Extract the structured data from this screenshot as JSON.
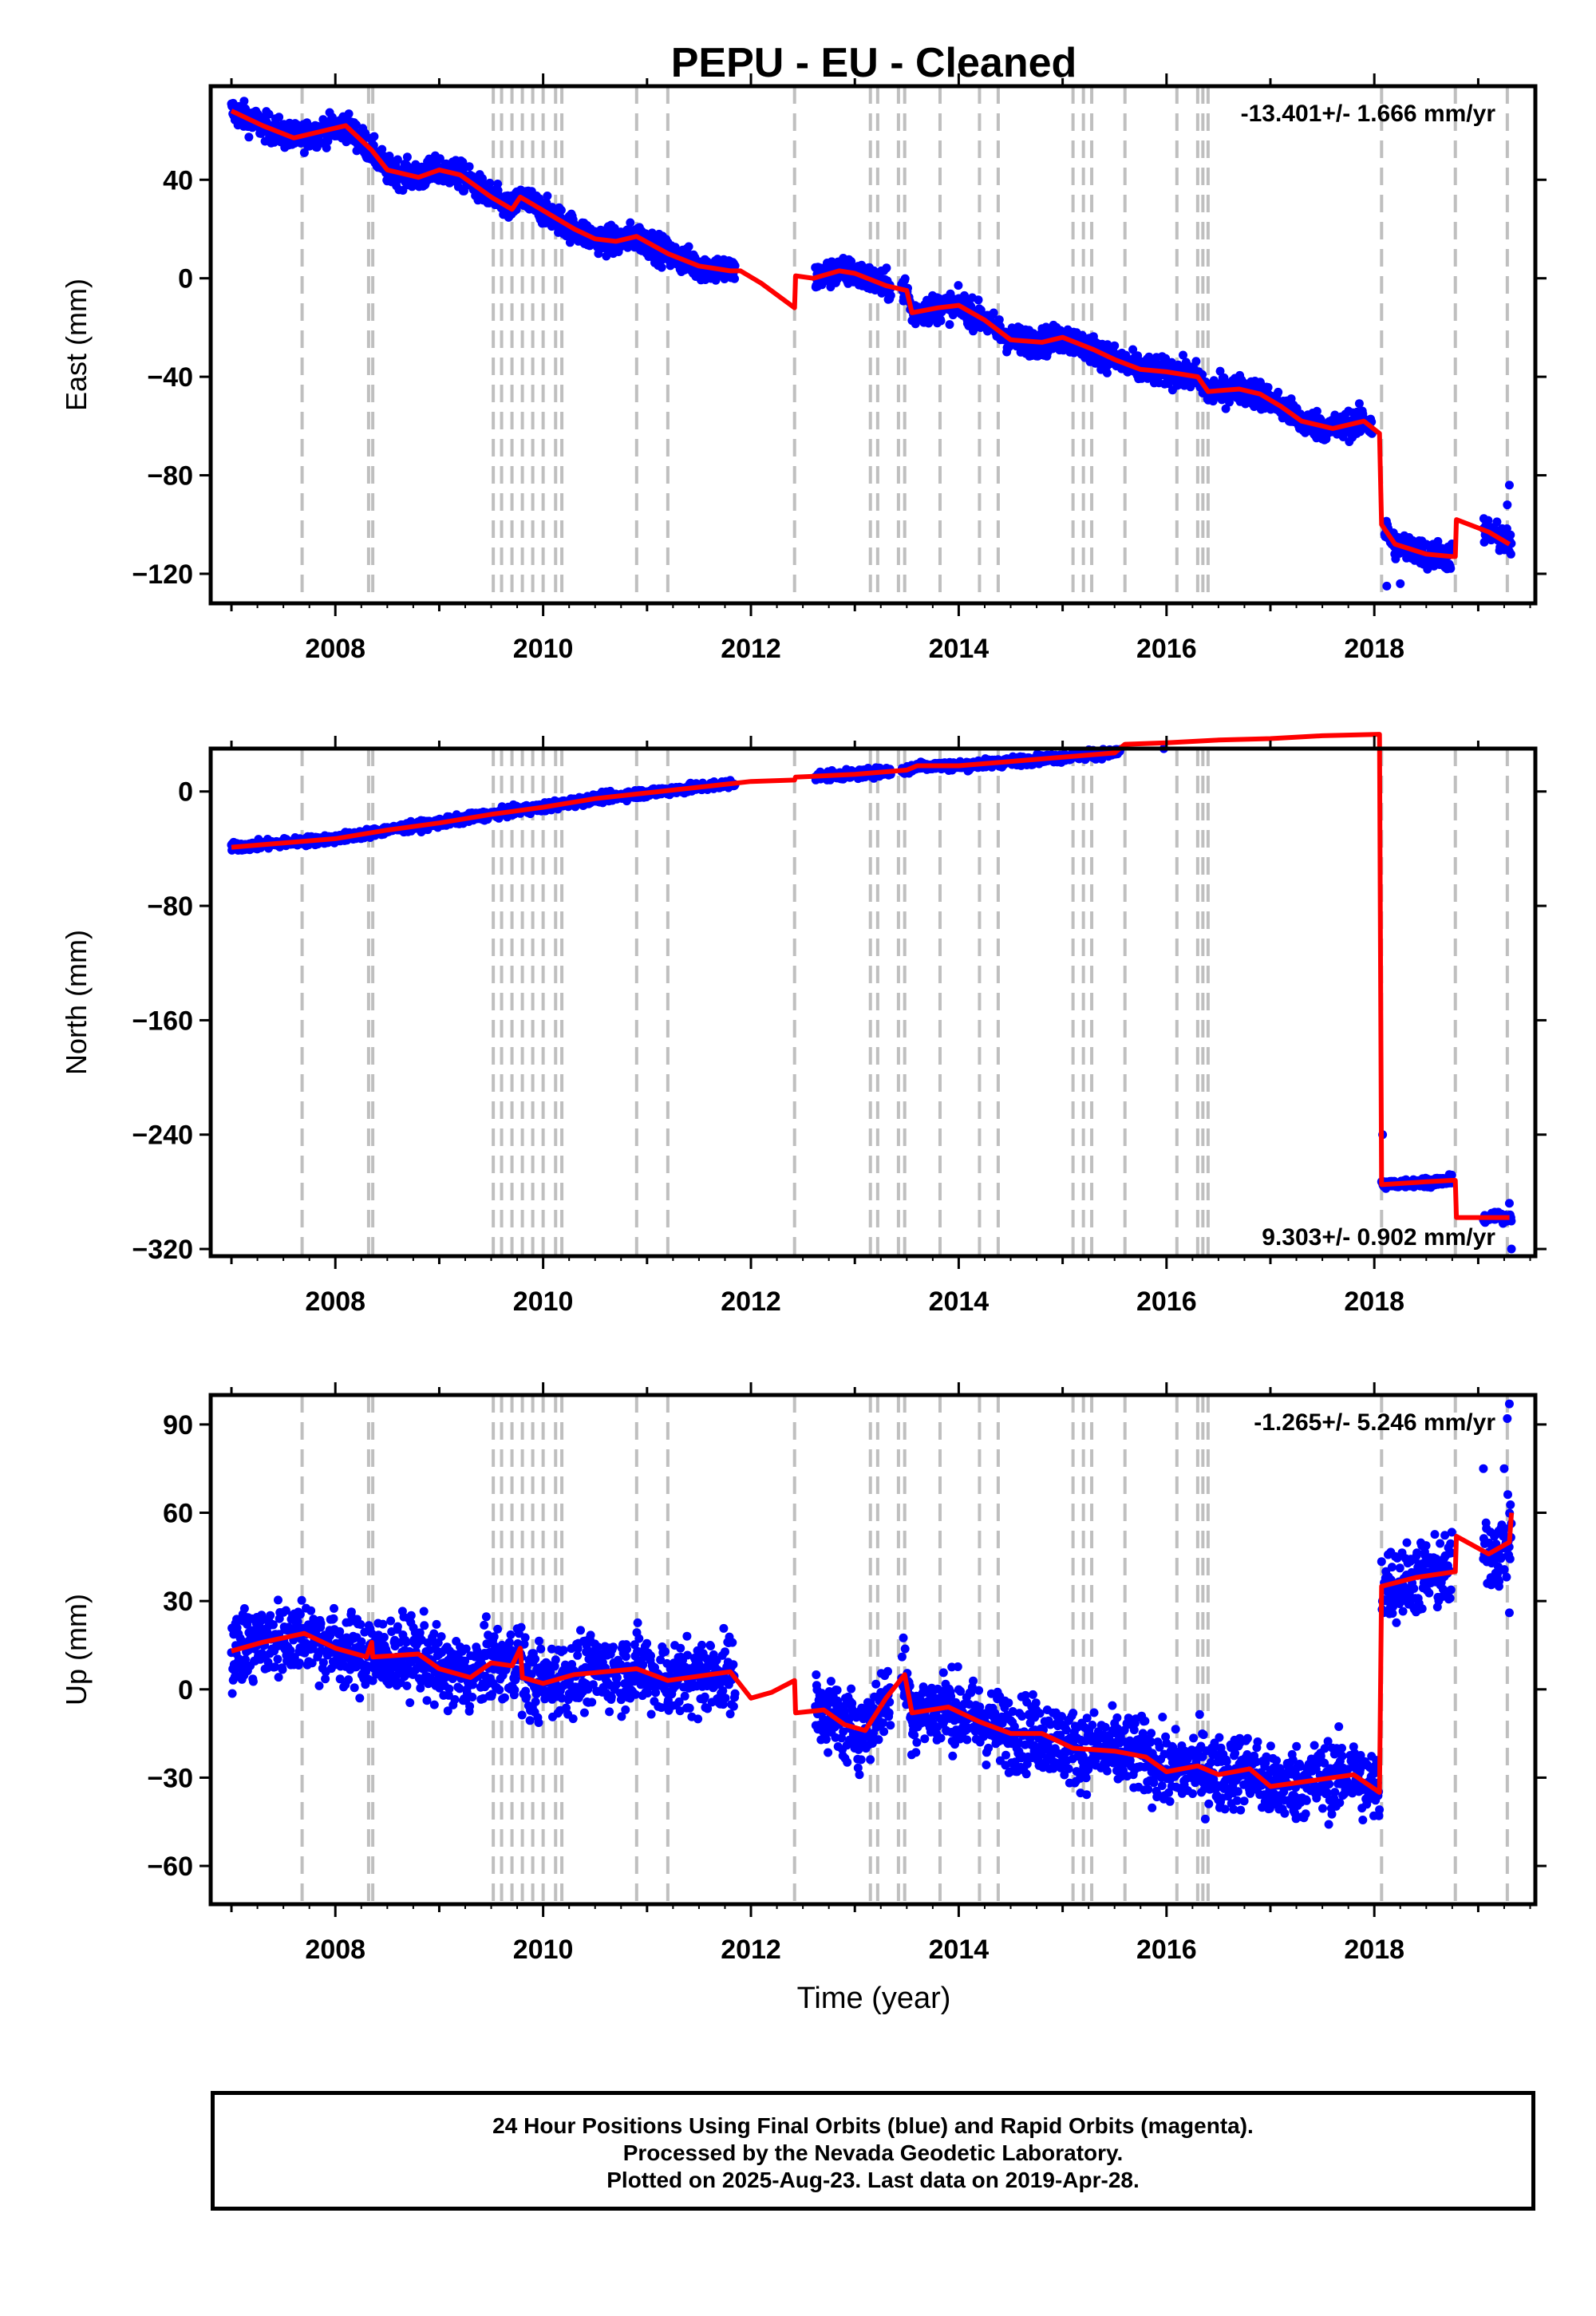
{
  "title": "PEPU  - EU - Cleaned",
  "xlabel": "Time (year)",
  "footer": {
    "line1": "24 Hour Positions Using Final Orbits (blue) and Rapid Orbits (magenta).",
    "line2": "Processed by the Nevada Geodetic Laboratory.",
    "line3": "Plotted on 2025-Aug-23. Last data on 2019-Apr-28."
  },
  "colors": {
    "data": "#0000ff",
    "model": "#ff0000",
    "steps": "#bfbfbf",
    "frame": "#000000"
  },
  "chart_data": [
    {
      "type": "scatter",
      "component": "East",
      "ylabel": "East (mm)",
      "rate_label": "-13.401+/- 1.666 mm/yr",
      "rate_position": "top-right",
      "xlim": [
        2006.8,
        2019.55
      ],
      "ylim": [
        -132,
        78
      ],
      "yticks": [
        -120,
        -80,
        -40,
        0,
        40
      ],
      "xticks": [
        2008,
        2010,
        2012,
        2014,
        2016,
        2018
      ],
      "noise_mm": 4,
      "model": [
        [
          2007.0,
          68
        ],
        [
          2007.3,
          62
        ],
        [
          2007.6,
          57
        ],
        [
          2007.9,
          60
        ],
        [
          2008.1,
          62
        ],
        [
          2008.35,
          52
        ],
        [
          2008.5,
          44
        ],
        [
          2008.8,
          41
        ],
        [
          2009.0,
          44
        ],
        [
          2009.2,
          42
        ],
        [
          2009.5,
          33
        ],
        [
          2009.7,
          28
        ],
        [
          2009.78,
          33
        ],
        [
          2009.9,
          30
        ],
        [
          2010.1,
          25
        ],
        [
          2010.3,
          20
        ],
        [
          2010.5,
          16
        ],
        [
          2010.7,
          15
        ],
        [
          2010.9,
          17
        ],
        [
          2011.2,
          10
        ],
        [
          2011.5,
          5
        ],
        [
          2011.8,
          3
        ],
        [
          2011.9,
          3
        ],
        [
          2012.1,
          -2
        ],
        [
          2012.42,
          -12
        ],
        [
          2012.43,
          1
        ],
        [
          2012.6,
          0
        ],
        [
          2012.85,
          3
        ],
        [
          2013.0,
          2
        ],
        [
          2013.3,
          -3
        ],
        [
          2013.5,
          -5
        ],
        [
          2013.55,
          -14
        ],
        [
          2013.8,
          -12
        ],
        [
          2014.0,
          -11
        ],
        [
          2014.25,
          -17
        ],
        [
          2014.5,
          -25
        ],
        [
          2014.8,
          -26
        ],
        [
          2015.0,
          -24
        ],
        [
          2015.3,
          -29
        ],
        [
          2015.5,
          -33
        ],
        [
          2015.75,
          -37
        ],
        [
          2016.0,
          -38
        ],
        [
          2016.3,
          -40
        ],
        [
          2016.4,
          -46
        ],
        [
          2016.7,
          -45
        ],
        [
          2016.9,
          -47
        ],
        [
          2017.1,
          -52
        ],
        [
          2017.3,
          -58
        ],
        [
          2017.6,
          -61
        ],
        [
          2017.9,
          -58
        ],
        [
          2018.05,
          -63
        ],
        [
          2018.07,
          -100
        ],
        [
          2018.2,
          -108
        ],
        [
          2018.5,
          -112
        ],
        [
          2018.75,
          -113
        ],
        [
          2018.78,
          -113
        ],
        [
          2018.79,
          -98
        ],
        [
          2019.1,
          -103
        ],
        [
          2019.3,
          -108
        ]
      ],
      "data_segments": [
        [
          2007.0,
          2011.85
        ],
        [
          2012.62,
          2013.35
        ],
        [
          2013.45,
          2017.98
        ],
        [
          2018.1,
          2018.75
        ],
        [
          2019.05,
          2019.32
        ]
      ],
      "extra_points": [
        [
          2019.3,
          -84
        ],
        [
          2019.28,
          -92
        ],
        [
          2018.12,
          -125
        ],
        [
          2018.25,
          -124
        ]
      ]
    },
    {
      "type": "scatter",
      "component": "North",
      "ylabel": "North (mm)",
      "rate_label": "9.303+/- 0.902 mm/yr",
      "rate_position": "bottom-right",
      "xlim": [
        2006.8,
        2019.55
      ],
      "ylim": [
        -325,
        30
      ],
      "yticks": [
        -320,
        -240,
        -160,
        -80,
        0
      ],
      "xticks": [
        2008,
        2010,
        2012,
        2014,
        2016,
        2018
      ],
      "noise_mm": 2.2,
      "model": [
        [
          2007.0,
          -39
        ],
        [
          2007.5,
          -36
        ],
        [
          2008.0,
          -33
        ],
        [
          2008.5,
          -27
        ],
        [
          2009.0,
          -22
        ],
        [
          2009.5,
          -16
        ],
        [
          2010.0,
          -11
        ],
        [
          2010.5,
          -5
        ],
        [
          2011.0,
          -1
        ],
        [
          2011.5,
          3
        ],
        [
          2012.0,
          7
        ],
        [
          2012.42,
          8
        ],
        [
          2012.43,
          10
        ],
        [
          2013.0,
          12
        ],
        [
          2013.5,
          15
        ],
        [
          2013.6,
          18
        ],
        [
          2014.0,
          18
        ],
        [
          2014.5,
          21
        ],
        [
          2015.0,
          24
        ],
        [
          2015.5,
          27
        ],
        [
          2015.6,
          33
        ],
        [
          2016.0,
          34
        ],
        [
          2016.5,
          36
        ],
        [
          2017.0,
          37
        ],
        [
          2017.5,
          39
        ],
        [
          2018.05,
          40
        ],
        [
          2018.07,
          -275
        ],
        [
          2018.5,
          -273
        ],
        [
          2018.75,
          -272
        ],
        [
          2018.78,
          -272
        ],
        [
          2018.79,
          -298
        ],
        [
          2019.3,
          -298
        ]
      ],
      "data_segments": [
        [
          2007.0,
          2011.85
        ],
        [
          2012.62,
          2013.35
        ],
        [
          2013.45,
          2018.05
        ],
        [
          2018.07,
          2018.75
        ],
        [
          2019.05,
          2019.32
        ]
      ],
      "extra_points": [
        [
          2019.32,
          -320
        ],
        [
          2019.3,
          -288
        ],
        [
          2018.08,
          -240
        ]
      ]
    },
    {
      "type": "scatter",
      "component": "Up",
      "ylabel": "Up (mm)",
      "rate_label": "-1.265+/- 5.246 mm/yr",
      "rate_position": "top-right",
      "xlim": [
        2006.8,
        2019.55
      ],
      "ylim": [
        -73,
        100
      ],
      "yticks": [
        -60,
        -30,
        0,
        30,
        60,
        90
      ],
      "xticks": [
        2008,
        2010,
        2012,
        2014,
        2016,
        2018
      ],
      "noise_mm": 9,
      "model": [
        [
          2007.0,
          13
        ],
        [
          2007.3,
          16
        ],
        [
          2007.7,
          19
        ],
        [
          2008.0,
          14
        ],
        [
          2008.3,
          11
        ],
        [
          2008.35,
          16
        ],
        [
          2008.36,
          11
        ],
        [
          2008.8,
          12
        ],
        [
          2009.0,
          7
        ],
        [
          2009.3,
          4
        ],
        [
          2009.5,
          9
        ],
        [
          2009.7,
          8
        ],
        [
          2009.78,
          14
        ],
        [
          2009.8,
          4
        ],
        [
          2010.0,
          2
        ],
        [
          2010.3,
          5
        ],
        [
          2010.9,
          7
        ],
        [
          2011.2,
          3
        ],
        [
          2011.8,
          6
        ],
        [
          2012.0,
          -3
        ],
        [
          2012.2,
          -1
        ],
        [
          2012.42,
          3
        ],
        [
          2012.43,
          -8
        ],
        [
          2012.7,
          -7
        ],
        [
          2012.9,
          -12
        ],
        [
          2013.1,
          -14
        ],
        [
          2013.3,
          -3
        ],
        [
          2013.48,
          5
        ],
        [
          2013.55,
          -8
        ],
        [
          2013.9,
          -6
        ],
        [
          2014.2,
          -11
        ],
        [
          2014.5,
          -15
        ],
        [
          2014.8,
          -15
        ],
        [
          2015.1,
          -20
        ],
        [
          2015.5,
          -21
        ],
        [
          2015.8,
          -23
        ],
        [
          2016.0,
          -28
        ],
        [
          2016.3,
          -26
        ],
        [
          2016.5,
          -29
        ],
        [
          2016.8,
          -27
        ],
        [
          2017.0,
          -33
        ],
        [
          2017.4,
          -31
        ],
        [
          2017.8,
          -29
        ],
        [
          2018.05,
          -35
        ],
        [
          2018.07,
          35
        ],
        [
          2018.4,
          38
        ],
        [
          2018.78,
          40
        ],
        [
          2018.79,
          52
        ],
        [
          2019.1,
          46
        ],
        [
          2019.3,
          50
        ],
        [
          2019.32,
          60
        ]
      ],
      "data_segments": [
        [
          2007.0,
          2011.85
        ],
        [
          2012.62,
          2013.35
        ],
        [
          2013.45,
          2018.05
        ],
        [
          2018.07,
          2018.75
        ],
        [
          2019.05,
          2019.32
        ]
      ],
      "extra_points": [
        [
          2019.3,
          97
        ],
        [
          2019.28,
          92
        ],
        [
          2019.25,
          75
        ],
        [
          2019.05,
          75
        ],
        [
          2019.3,
          26
        ],
        [
          2019.2,
          35
        ]
      ]
    }
  ],
  "step_lines": [
    2007.68,
    2008.32,
    2008.36,
    2009.52,
    2009.6,
    2009.7,
    2009.8,
    2009.9,
    2010.0,
    2010.12,
    2010.18,
    2010.9,
    2011.2,
    2012.42,
    2013.15,
    2013.22,
    2013.42,
    2013.48,
    2013.82,
    2014.2,
    2014.38,
    2015.1,
    2015.2,
    2015.28,
    2015.6,
    2016.1,
    2016.3,
    2016.35,
    2016.4,
    2018.07,
    2018.78,
    2019.28
  ]
}
